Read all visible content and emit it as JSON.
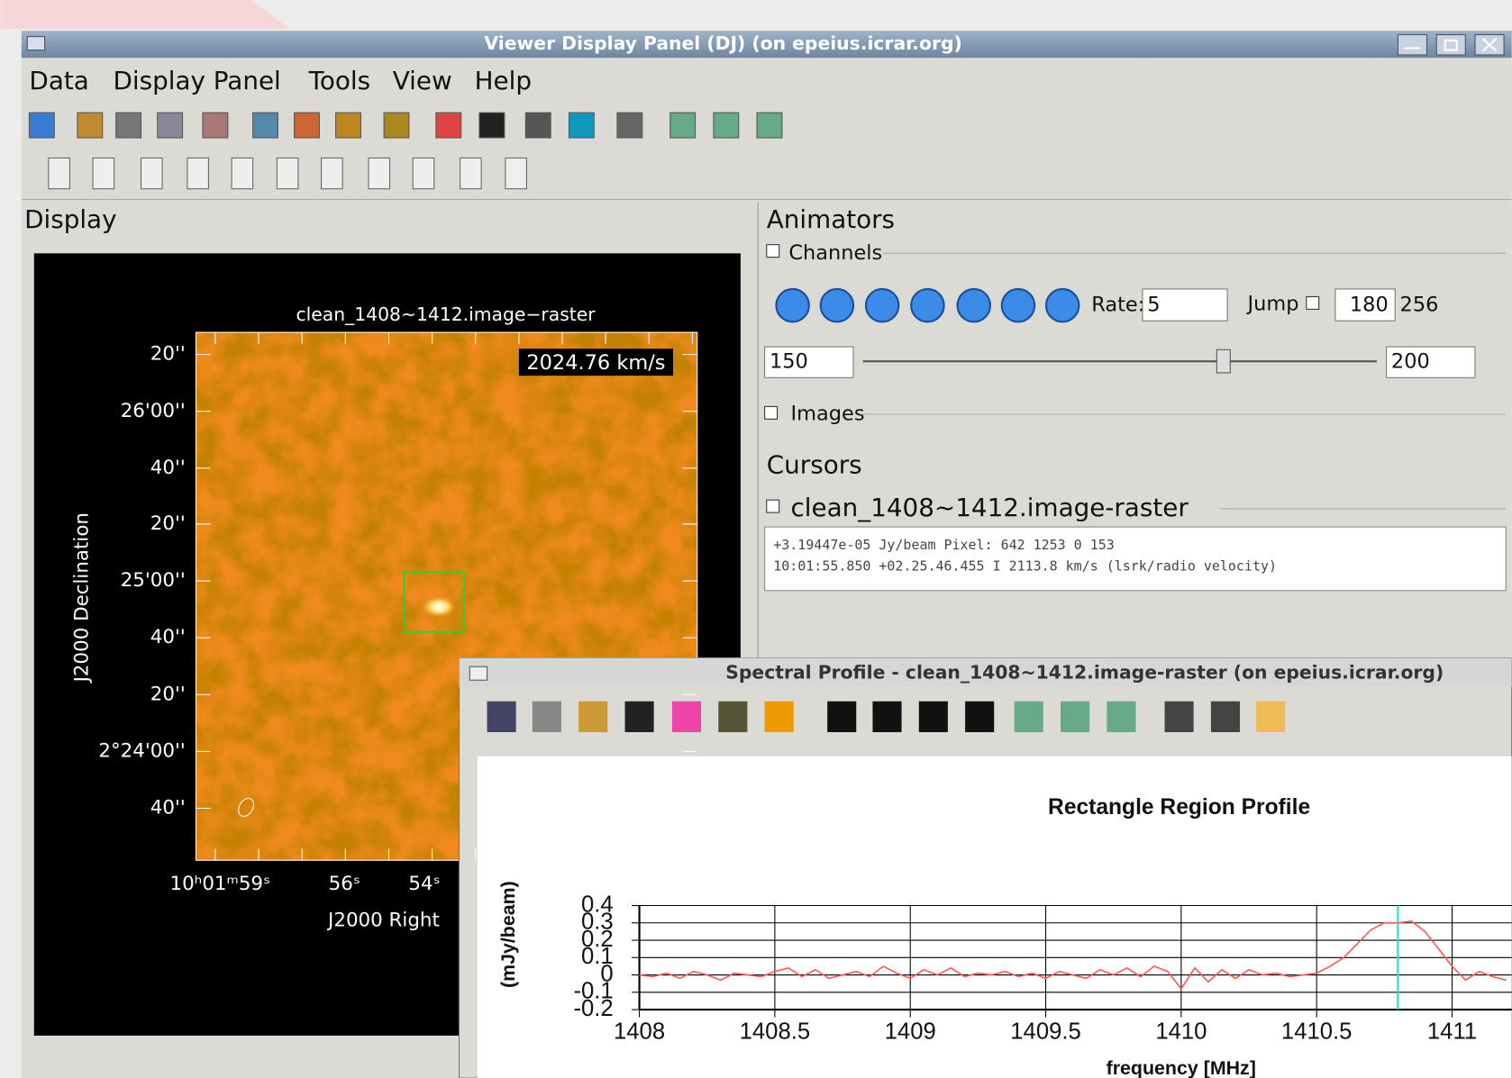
{
  "window": {
    "title": "Viewer Display Panel (DJ) (on epeius.icrar.org)",
    "menu": [
      "Data",
      "Display Panel",
      "Tools",
      "View",
      "Help"
    ]
  },
  "display": {
    "title": "Display",
    "image_title": "clean_1408~1412.image−raster",
    "velocity": "2024.76 km/s",
    "y_axis_label": "J2000 Declination",
    "y_ticks": [
      "20''",
      "26'00''",
      "40''",
      "20''",
      "25'00''",
      "40''",
      "20''",
      "2°24'00''",
      "40''"
    ],
    "x_ticks": [
      "10ʰ01ᵐ59ˢ",
      "56ˢ",
      "54ˢ"
    ],
    "x_axis_label": "J2000 Right"
  },
  "animators": {
    "title": "Animators",
    "channels": "Channels",
    "rate_label": "Rate:",
    "rate": 5,
    "jump": "Jump",
    "jump_value": 180,
    "total": 256,
    "slider_min": 150,
    "slider_max": 200,
    "images": "Images"
  },
  "cursors": {
    "title": "Cursors",
    "layer": "clean_1408~1412.image-raster",
    "line1": "+3.19447e-05 Jy/beam   Pixel: 642 1253 0 153",
    "line2": "10:01:55.850  +02.25.46.455  I  2113.8 km/s (lsrk/radio velocity)"
  },
  "spectral": {
    "title": "Spectral Profile - clean_1408~1412.image-raster (on epeius.icrar.org)",
    "chart_data": {
      "type": "line",
      "title": "Rectangle Region Profile",
      "x_label": "frequency [MHz]",
      "y_label": "(mJy/beam)",
      "xlim": [
        1408,
        1411.22
      ],
      "ylim": [
        -0.2,
        0.4
      ],
      "xticks": [
        1408,
        1408.5,
        1409,
        1409.5,
        1410,
        1410.5,
        1411
      ],
      "yticks": [
        -0.2,
        -0.1,
        0,
        0.1,
        0.2,
        0.3,
        0.4
      ],
      "grid": true,
      "cursor_x": 1410.8,
      "x": [
        1408,
        1408.05,
        1408.1,
        1408.15,
        1408.2,
        1408.25,
        1408.3,
        1408.35,
        1408.4,
        1408.45,
        1408.5,
        1408.55,
        1408.6,
        1408.65,
        1408.7,
        1408.75,
        1408.8,
        1408.85,
        1408.9,
        1408.95,
        1409,
        1409.05,
        1409.1,
        1409.15,
        1409.2,
        1409.25,
        1409.3,
        1409.35,
        1409.4,
        1409.45,
        1409.5,
        1409.55,
        1409.6,
        1409.65,
        1409.7,
        1409.75,
        1409.8,
        1409.85,
        1409.9,
        1409.95,
        1410,
        1410.05,
        1410.1,
        1410.15,
        1410.2,
        1410.25,
        1410.3,
        1410.35,
        1410.4,
        1410.45,
        1410.5,
        1410.55,
        1410.6,
        1410.65,
        1410.7,
        1410.75,
        1410.8,
        1410.85,
        1410.9,
        1410.95,
        1411,
        1411.05,
        1411.1,
        1411.15,
        1411.2
      ],
      "series": [
        {
          "color": "#ff5555",
          "values": [
            0,
            -0.01,
            0.01,
            -0.02,
            0.02,
            0,
            -0.03,
            0.01,
            0,
            -0.01,
            0.02,
            0.04,
            -0.01,
            0.03,
            -0.02,
            0,
            0.02,
            -0.01,
            0.05,
            0.01,
            -0.02,
            0.03,
            0,
            0.04,
            -0.01,
            0.01,
            0,
            0.02,
            -0.01,
            0.01,
            -0.02,
            0.02,
            0,
            -0.02,
            0.03,
            0,
            0.04,
            -0.01,
            0.05,
            0.02,
            -0.08,
            0.04,
            -0.04,
            0.03,
            -0.02,
            0.03,
            0,
            0.01,
            -0.01,
            0,
            0.01,
            0.05,
            0.1,
            0.18,
            0.26,
            0.3,
            0.3,
            0.31,
            0.25,
            0.15,
            0.05,
            -0.03,
            0.02,
            -0.01,
            -0.03
          ]
        }
      ]
    }
  }
}
